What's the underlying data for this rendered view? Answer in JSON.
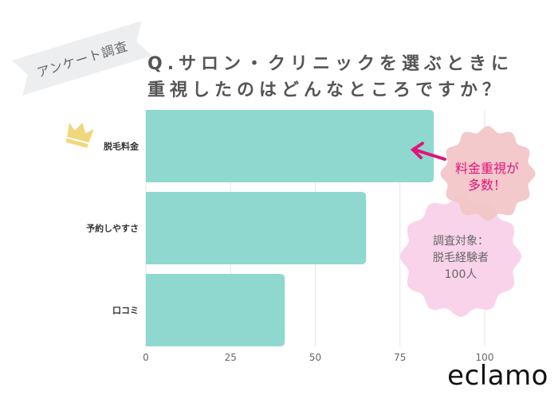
{
  "badge": "アンケート調査",
  "title_line1": "Q.サロン・クリニックを選ぶときに",
  "title_line2": "重視したのはどんなところですか？",
  "brand": "eclamo",
  "callout": {
    "line1": "料金重視が",
    "line2": "多数！",
    "color": "#e0147a"
  },
  "note": {
    "line1": "調査対象：",
    "line2": "脱毛経験者",
    "line3": "100人"
  },
  "icons": [
    "crown-icon",
    "arrow-left-icon"
  ],
  "colors": {
    "bar": "#8ed8cf",
    "callout_bg": "#f2c6c8",
    "note_bg": "#f9d3ea",
    "crown": "#f0d77a"
  },
  "chart_data": {
    "type": "bar",
    "orientation": "horizontal",
    "categories": [
      "脱毛料金",
      "予約しやすさ",
      "口コミ"
    ],
    "values": [
      85,
      65,
      41
    ],
    "xlim": [
      0,
      100
    ],
    "xticks": [
      "0",
      "25",
      "50",
      "75",
      "100"
    ],
    "grid": true,
    "xlabel": "",
    "ylabel": ""
  }
}
